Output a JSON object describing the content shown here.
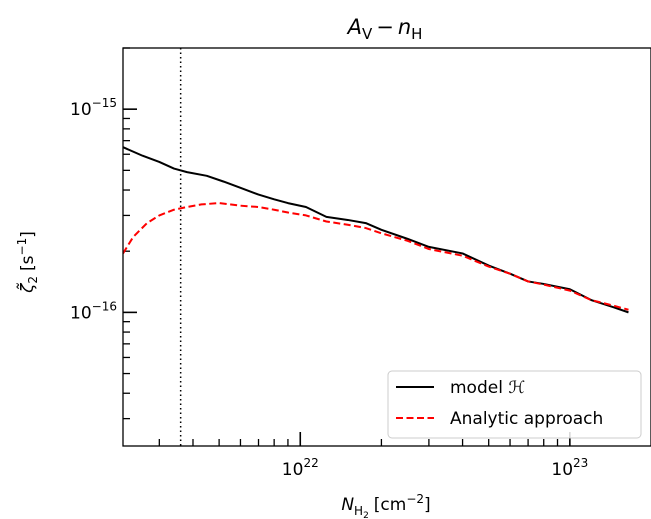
{
  "chart_data": {
    "type": "line",
    "title": "A_V − n_H",
    "title_parts": {
      "a": "A",
      "a_sub": "V",
      "minus": "−",
      "n": "n",
      "n_sub": "H"
    },
    "xlabel_parts": {
      "n": "N",
      "n_sub": "H",
      "n_subsub": "2",
      "unit": "[cm",
      "unit_exp": "−2",
      "unit_end": "]"
    },
    "ylabel_parts": {
      "sym": "ζ̃",
      "sub": "2",
      "unit": "[s",
      "unit_exp": "−1",
      "unit_end": "]"
    },
    "x_scale": "log",
    "y_scale": "log",
    "xlim": [
      2.2e+21,
      2e+23
    ],
    "ylim": [
      2.2e-17,
      2e-15
    ],
    "x_ticks": [
      {
        "value": 1e+22,
        "base": "10",
        "exp": "22"
      },
      {
        "value": 1e+23,
        "base": "10",
        "exp": "23"
      }
    ],
    "y_ticks": [
      {
        "value": 1e-16,
        "base": "10",
        "exp": "−16"
      },
      {
        "value": 1e-15,
        "base": "10",
        "exp": "−15"
      }
    ],
    "vline": {
      "x": 3.6e+21,
      "style": "dotted",
      "color": "#000000"
    },
    "legend_position": "lower-right",
    "series": [
      {
        "name": "model ℋ",
        "color": "#000000",
        "style": "solid",
        "x": [
          2.2e+21,
          2.6e+21,
          3e+21,
          3.4e+21,
          3.8e+21,
          4.5e+21,
          5.2e+21,
          6e+21,
          7e+21,
          8e+21,
          9e+21,
          1.05e+22,
          1.25e+22,
          1.5e+22,
          1.75e+22,
          2e+22,
          2.5e+22,
          3e+22,
          4e+22,
          5e+22,
          6e+22,
          7e+22,
          8e+22,
          1e+23,
          1.2e+23,
          1.45e+23,
          1.65e+23
        ],
        "y": [
          6.5e-16,
          5.9e-16,
          5.5e-16,
          5.1e-16,
          4.9e-16,
          4.7e-16,
          4.4e-16,
          4.1e-16,
          3.8e-16,
          3.6e-16,
          3.45e-16,
          3.3e-16,
          2.95e-16,
          2.85e-16,
          2.75e-16,
          2.55e-16,
          2.3e-16,
          2.1e-16,
          1.95e-16,
          1.7e-16,
          1.55e-16,
          1.42e-16,
          1.38e-16,
          1.3e-16,
          1.15e-16,
          1.06e-16,
          1e-16
        ]
      },
      {
        "name": "Analytic approach",
        "color": "#ff0000",
        "style": "dashed",
        "x": [
          2.2e+21,
          2.4e+21,
          2.7e+21,
          3e+21,
          3.4e+21,
          3.8e+21,
          4.3e+21,
          5e+21,
          6e+21,
          7e+21,
          8e+21,
          9e+21,
          1.05e+22,
          1.25e+22,
          1.5e+22,
          1.75e+22,
          2e+22,
          2.5e+22,
          3e+22,
          4e+22,
          5e+22,
          6e+22,
          7e+22,
          8e+22,
          1e+23,
          1.2e+23,
          1.45e+23,
          1.65e+23
        ],
        "y": [
          1.95e-16,
          2.35e-16,
          2.75e-16,
          3e-16,
          3.2e-16,
          3.3e-16,
          3.4e-16,
          3.45e-16,
          3.35e-16,
          3.3e-16,
          3.2e-16,
          3.1e-16,
          3e-16,
          2.8e-16,
          2.7e-16,
          2.6e-16,
          2.45e-16,
          2.25e-16,
          2.05e-16,
          1.9e-16,
          1.68e-16,
          1.55e-16,
          1.42e-16,
          1.37e-16,
          1.28e-16,
          1.15e-16,
          1.08e-16,
          1.03e-16
        ]
      }
    ]
  }
}
